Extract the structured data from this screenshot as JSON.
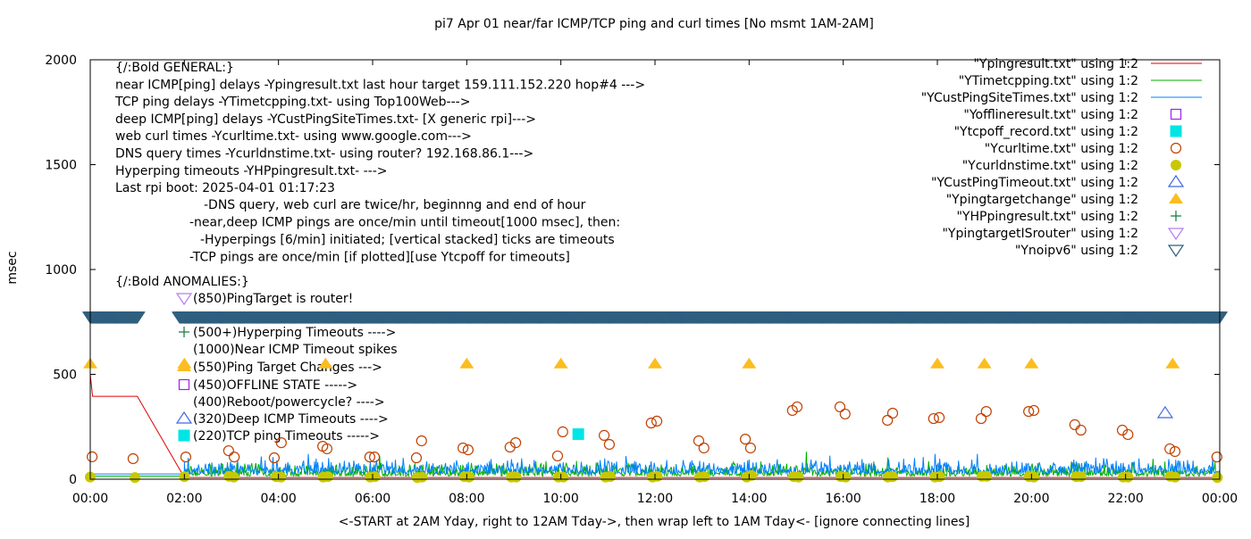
{
  "chart_data": {
    "type": "scatter",
    "title": "pi7 Apr 01  near/far ICMP/TCP ping and curl times [No msmt 1AM-2AM]",
    "xlabel": "<-START at 2AM Yday, right to 12AM Tday->, then wrap left to 1AM Tday<- [ignore connecting lines]",
    "ylabel": "msec",
    "xlim": [
      0,
      24
    ],
    "ylim": [
      0,
      2000
    ],
    "x_unit": "hours",
    "xticks": [
      "00:00",
      "02:00",
      "04:00",
      "06:00",
      "08:00",
      "10:00",
      "12:00",
      "14:00",
      "16:00",
      "18:00",
      "20:00",
      "22:00",
      "00:00"
    ],
    "yticks": [
      "0",
      "500",
      "1000",
      "1500",
      "2000"
    ],
    "grid": false,
    "legend_placement": "top-right",
    "annotations": {
      "general": [
        "{/:Bold GENERAL:}",
        "near ICMP[ping] delays -Ypingresult.txt last hour target 159.111.152.220 hop#4 --->",
        "TCP ping delays -YTimetcpping.txt- using Top100Web--->",
        "deep ICMP[ping] delays -YCustPingSiteTimes.txt- [X generic rpi]--->",
        "web curl times -Ycurltime.txt- using www.google.com--->",
        "DNS query times -Ycurldnstime.txt- using router? 192.168.86.1--->",
        "Hyperping timeouts -YHPpingresult.txt- --->",
        "Last rpi boot: 2025-04-01 01:17:23"
      ],
      "notes": [
        "-DNS query, web curl are twice/hr, beginnng and end of hour",
        "-near,deep ICMP pings are once/min until timeout[1000 msec], then:",
        "-Hyperpings [6/min] initiated; [vertical stacked] ticks are timeouts",
        "-TCP pings are once/min [if plotted][use Ytcpoff for timeouts]"
      ],
      "anomalies_title": "{/:Bold ANOMALIES:}",
      "anomalies": [
        {
          "symbol": "down-triangle-open",
          "color": "#b77cf0",
          "text": "(850)PingTarget is router!"
        },
        {
          "symbol": "plus",
          "color": "#0a7a3a",
          "text": "(500+)Hyperping Timeouts ---->"
        },
        {
          "symbol": "none",
          "color": "",
          "text": "(1000)Near ICMP Timeout spikes"
        },
        {
          "symbol": "up-triangle-filled",
          "color": "#fbbd1f",
          "text": "(550)Ping Target Changes --->"
        },
        {
          "symbol": "square-open",
          "color": "#a020f0",
          "text": "(450)OFFLINE STATE ----->"
        },
        {
          "symbol": "none",
          "color": "",
          "text": "(400)Reboot/powercycle? ---->"
        },
        {
          "symbol": "up-triangle-open",
          "color": "#4169e1",
          "text": "(320)Deep ICMP Timeouts ---->"
        },
        {
          "symbol": "square-filled",
          "color": "#00e5e5",
          "text": "(220)TCP ping Timeouts ----->"
        }
      ]
    },
    "series": [
      {
        "name": "\"Ypingresult.txt\" using 1:2",
        "style": "line",
        "color": "#e00000",
        "points": [
          [
            0,
            500
          ],
          [
            0.05,
            395
          ],
          [
            1.0,
            395
          ],
          [
            2.0,
            8
          ],
          [
            24,
            8
          ]
        ]
      },
      {
        "name": "\"YTimetcpping.txt\" using 1:2",
        "style": "noisy-line",
        "color": "#00b000",
        "baseline": 15,
        "typical_max": 90
      },
      {
        "name": "\"YCustPingSiteTimes.txt\" using 1:2",
        "style": "noisy-line",
        "color": "#0080ff",
        "baseline": 25,
        "typical_max": 110
      },
      {
        "name": "\"Yofflineresult.txt\" using 1:2",
        "style": "square-open",
        "color": "#a020f0",
        "points": []
      },
      {
        "name": "\"Ytcpoff_record.txt\" using 1:2",
        "style": "square-filled",
        "color": "#00e5e5",
        "points": [
          [
            10.37,
            215
          ]
        ]
      },
      {
        "name": "\"Ycurltime.txt\" using 1:2",
        "style": "circle-open",
        "color": "#c04000",
        "points": [
          [
            0.04,
            107
          ],
          [
            0.91,
            98
          ],
          [
            2.03,
            106
          ],
          [
            2.94,
            136
          ],
          [
            3.06,
            106
          ],
          [
            3.91,
            102
          ],
          [
            4.06,
            174
          ],
          [
            4.94,
            157
          ],
          [
            5.03,
            145
          ],
          [
            5.94,
            106
          ],
          [
            6.04,
            106
          ],
          [
            6.93,
            102
          ],
          [
            7.04,
            183
          ],
          [
            7.92,
            149
          ],
          [
            8.03,
            140
          ],
          [
            8.92,
            153
          ],
          [
            9.04,
            174
          ],
          [
            9.93,
            111
          ],
          [
            10.04,
            226
          ],
          [
            10.92,
            209
          ],
          [
            11.03,
            166
          ],
          [
            11.92,
            268
          ],
          [
            12.04,
            277
          ],
          [
            12.93,
            183
          ],
          [
            13.04,
            149
          ],
          [
            13.92,
            191
          ],
          [
            14.03,
            149
          ],
          [
            14.92,
            328
          ],
          [
            15.02,
            345
          ],
          [
            15.93,
            345
          ],
          [
            16.04,
            311
          ],
          [
            16.94,
            281
          ],
          [
            17.05,
            315
          ],
          [
            17.92,
            289
          ],
          [
            18.04,
            294
          ],
          [
            18.93,
            289
          ],
          [
            19.04,
            323
          ],
          [
            19.94,
            323
          ],
          [
            20.05,
            328
          ],
          [
            20.92,
            260
          ],
          [
            21.05,
            234
          ],
          [
            21.93,
            234
          ],
          [
            22.05,
            213
          ],
          [
            22.94,
            145
          ],
          [
            23.05,
            132
          ],
          [
            23.94,
            106
          ]
        ]
      },
      {
        "name": "\"Ycurldnstime.txt\" using 1:2",
        "style": "circle-filled",
        "color": "#c8c800",
        "points": [
          [
            0.0,
            10
          ],
          [
            0.95,
            8
          ],
          [
            2.0,
            12
          ],
          [
            2.95,
            14
          ],
          [
            3.05,
            10
          ],
          [
            3.95,
            12
          ],
          [
            4.05,
            10
          ],
          [
            4.95,
            10
          ],
          [
            5.05,
            12
          ],
          [
            5.95,
            10
          ],
          [
            6.05,
            12
          ],
          [
            6.95,
            8
          ],
          [
            7.05,
            10
          ],
          [
            7.95,
            12
          ],
          [
            8.05,
            10
          ],
          [
            8.95,
            10
          ],
          [
            9.05,
            10
          ],
          [
            9.95,
            10
          ],
          [
            10.05,
            10
          ],
          [
            10.95,
            10
          ],
          [
            11.05,
            12
          ],
          [
            11.95,
            10
          ],
          [
            12.05,
            14
          ],
          [
            12.95,
            10
          ],
          [
            13.05,
            12
          ],
          [
            13.95,
            10
          ],
          [
            14.05,
            18
          ],
          [
            14.95,
            12
          ],
          [
            15.05,
            10
          ],
          [
            15.95,
            12
          ],
          [
            16.05,
            10
          ],
          [
            16.95,
            10
          ],
          [
            17.05,
            12
          ],
          [
            17.95,
            10
          ],
          [
            18.05,
            12
          ],
          [
            18.95,
            14
          ],
          [
            19.05,
            14
          ],
          [
            19.95,
            12
          ],
          [
            20.05,
            10
          ],
          [
            20.95,
            12
          ],
          [
            21.05,
            12
          ],
          [
            21.95,
            10
          ],
          [
            22.05,
            10
          ],
          [
            22.95,
            14
          ],
          [
            23.05,
            10
          ],
          [
            23.95,
            8
          ]
        ]
      },
      {
        "name": "\"YCustPingTimeout.txt\" using 1:2",
        "style": "up-triangle-open",
        "color": "#4169e1",
        "points": [
          [
            22.84,
            315
          ]
        ]
      },
      {
        "name": "\"Ypingtargetchange\" using 1:2",
        "style": "up-triangle-filled",
        "color": "#fbbd1f",
        "points": [
          [
            0,
            550
          ],
          [
            2,
            550
          ],
          [
            5,
            550
          ],
          [
            8,
            550
          ],
          [
            10,
            550
          ],
          [
            12,
            550
          ],
          [
            14,
            550
          ],
          [
            18,
            550
          ],
          [
            19,
            550
          ],
          [
            20,
            550
          ],
          [
            23,
            550
          ]
        ]
      },
      {
        "name": "\"YHPpingresult.txt\" using 1:2",
        "style": "plus",
        "color": "#0a7a3a",
        "points": []
      },
      {
        "name": "\"YpingtargetISrouter\" using 1:2",
        "style": "down-triangle-open",
        "color": "#b77cf0",
        "points": []
      },
      {
        "name": "\"Ynoipv6\" using 1:2",
        "style": "down-triangle-dense",
        "color": "#2f5f7f",
        "value": 775,
        "ranges": [
          [
            0,
            1.0
          ],
          [
            1.9,
            24
          ]
        ]
      }
    ]
  }
}
